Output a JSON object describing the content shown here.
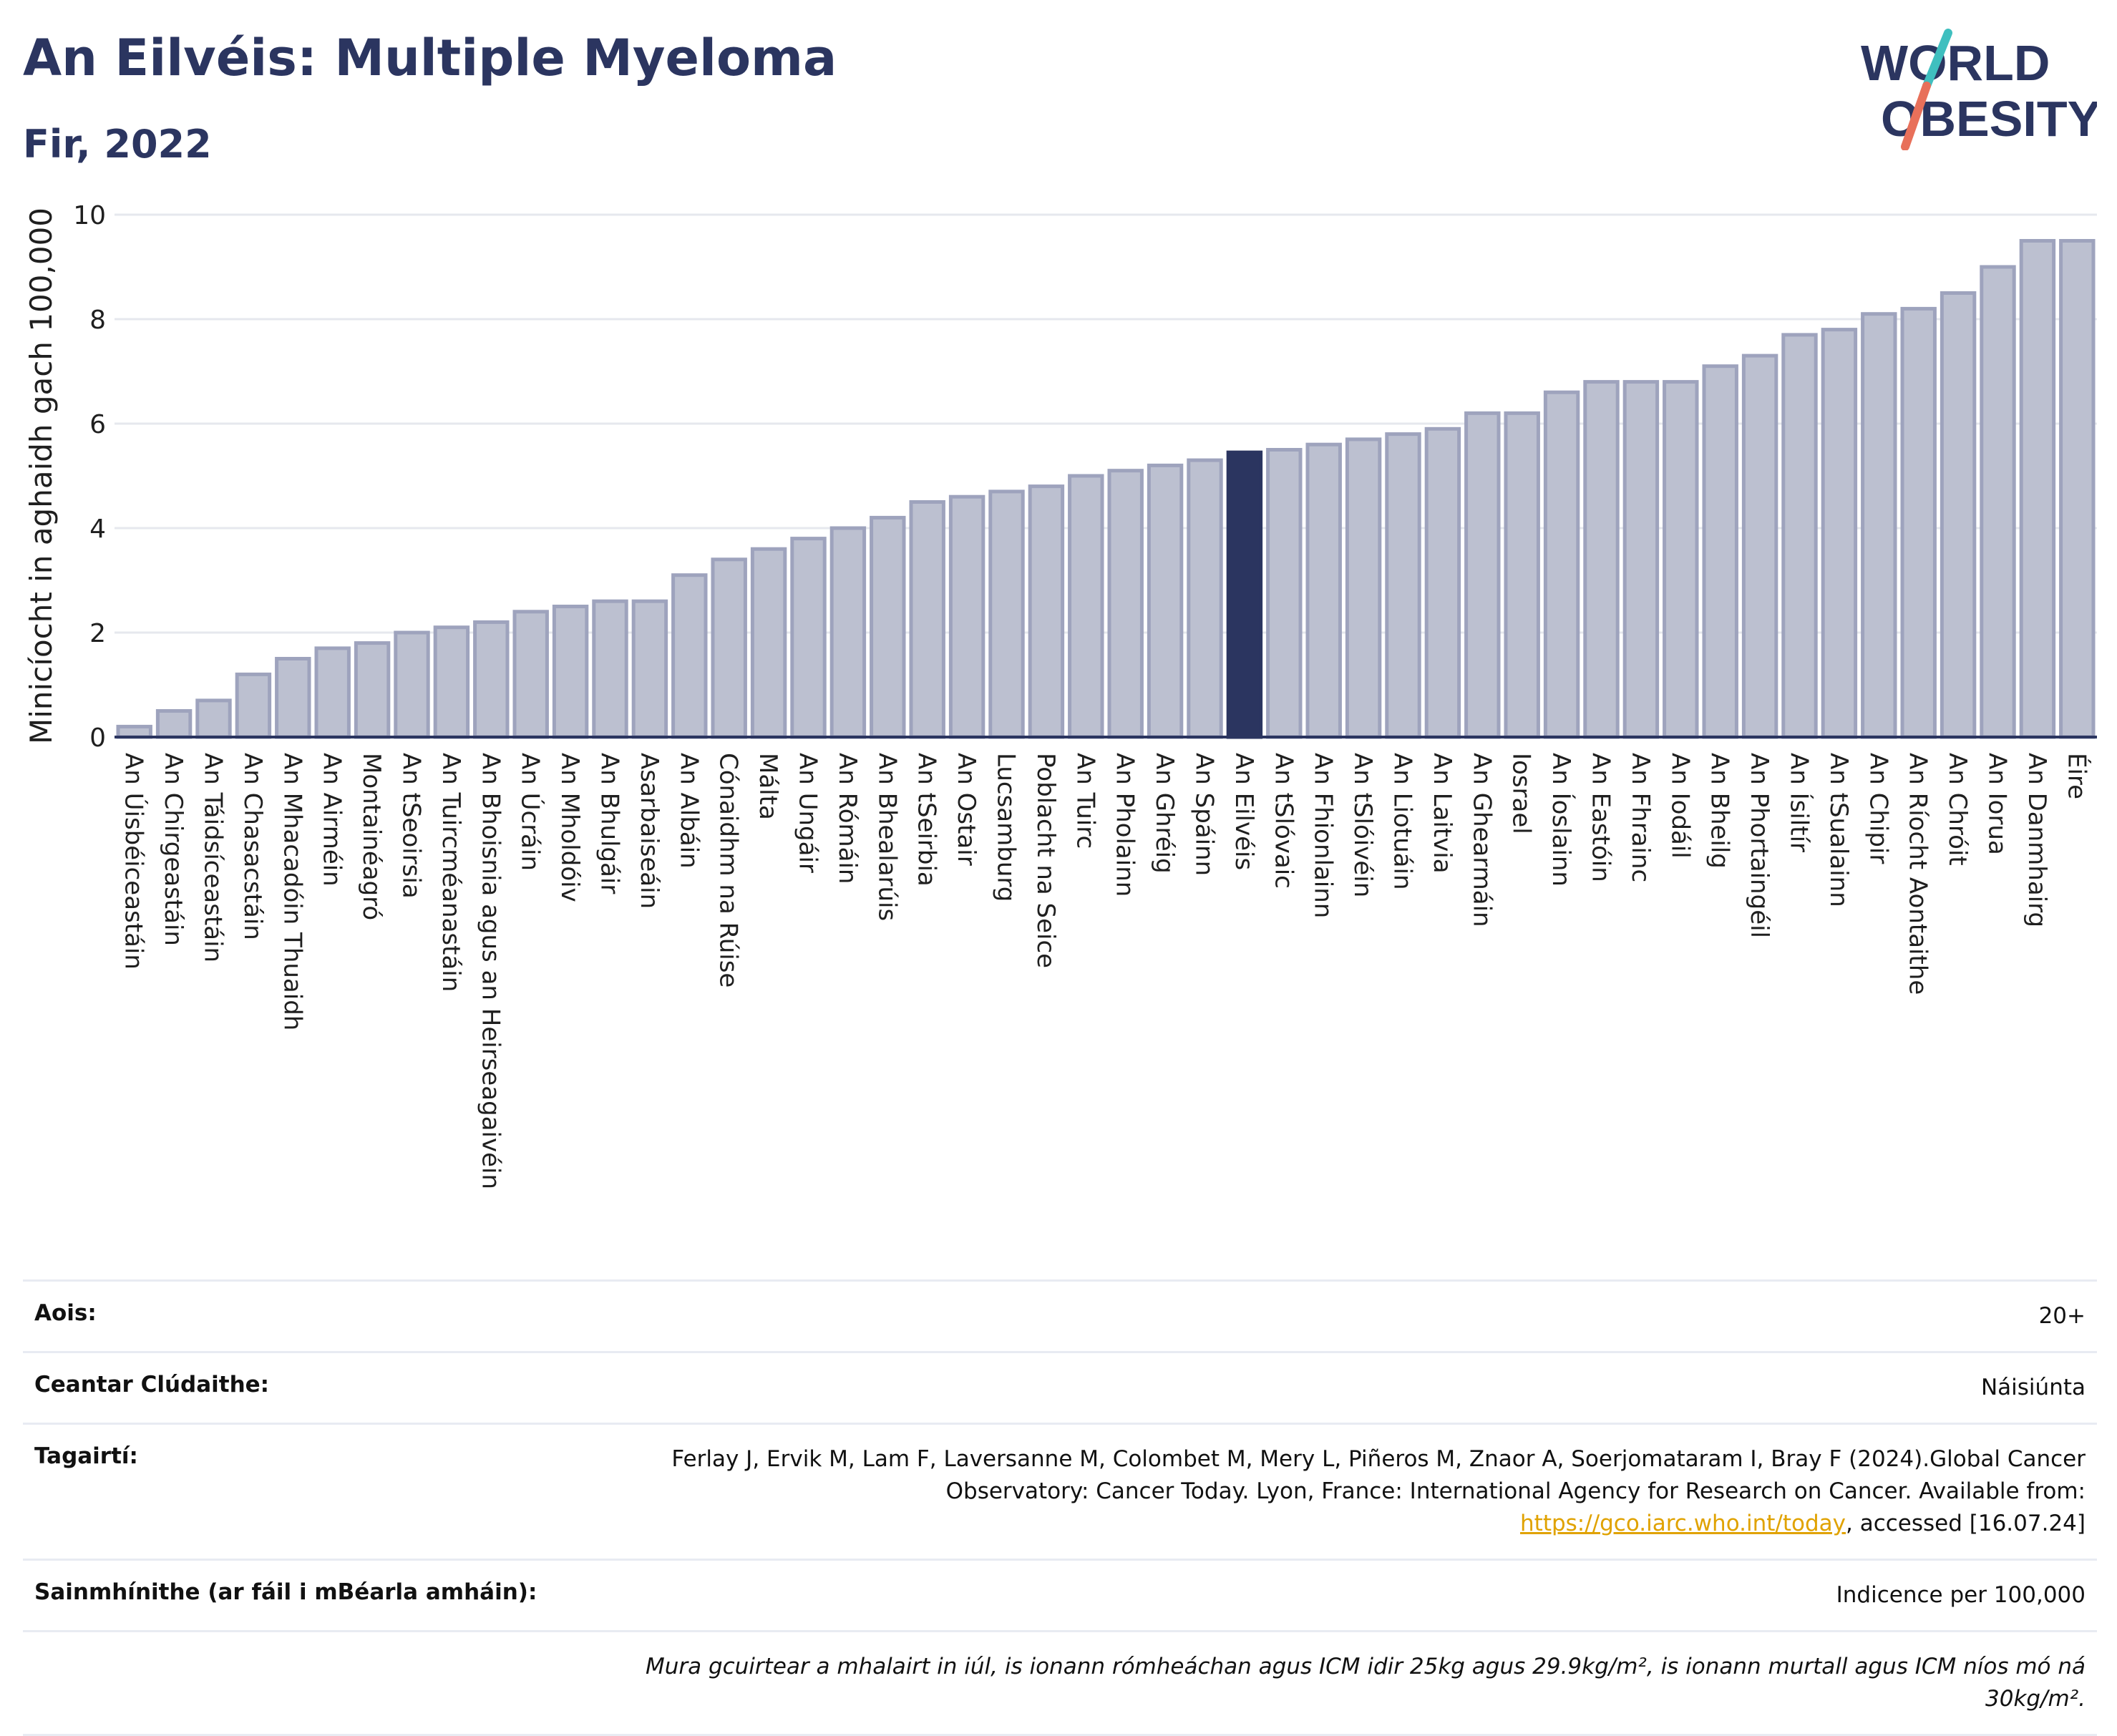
{
  "header": {
    "title": "An Eilvéis: Multiple Myeloma",
    "subtitle": "Fir, 2022"
  },
  "logo": {
    "line1": "WORLD",
    "line2": "OBESITY",
    "colors": {
      "text": "#2b3560",
      "slash_top": "#3fbfbf",
      "slash_bottom": "#e8705a"
    }
  },
  "colors": {
    "bar": "#bcc0d0",
    "bar_stroke": "#9ea3bd",
    "highlight": "#2b3560",
    "grid": "#e6e8ee",
    "axis": "#2b3560"
  },
  "chart_data": {
    "type": "bar",
    "ylabel": "Minicíocht in aghaidh gach 100,000",
    "ylim": [
      0,
      10
    ],
    "yticks": [
      0,
      2,
      4,
      6,
      8,
      10
    ],
    "highlight": "An Eilvéis",
    "grid": true,
    "categories": [
      "An Úisbéiceastáin",
      "An Chirgeastáin",
      "An Táidsíceastáin",
      "An Chasacstáin",
      "An Mhacadóin Thuaidh",
      "An Airméin",
      "Montainéagró",
      "An tSeoirsia",
      "An Tuircméanastáin",
      "An Bhoisnia agus an Heirseagaivéin",
      "An Úcráin",
      "An Mholdóiv",
      "An Bhulgáir",
      "Asarbaiseáin",
      "An Albáin",
      "Cónaidhm na Rúise",
      "Málta",
      "An Ungáir",
      "An Rómáin",
      "An Bhealarúis",
      "An tSeirbia",
      "An Ostair",
      "Lucsamburg",
      "Poblacht na Seice",
      "An Tuirc",
      "An Pholainn",
      "An Ghréig",
      "An Spáinn",
      "An Eilvéis",
      "An tSlóvaic",
      "An Fhionlainn",
      "An tSlóivéin",
      "An Liotuáin",
      "An Laitvia",
      "An Ghearmáin",
      "Iosrael",
      "An Íoslainn",
      "An Eastóin",
      "An Fhrainc",
      "An Iodáil",
      "An Bheilg",
      "An Phortaingéil",
      "An Ísiltír",
      "An tSualainn",
      "An Chipir",
      "An Ríocht Aontaithe",
      "An Chróit",
      "An Iorua",
      "An Danmhairg",
      "Éire"
    ],
    "values": [
      0.2,
      0.5,
      0.7,
      1.2,
      1.5,
      1.7,
      1.8,
      2.0,
      2.1,
      2.2,
      2.4,
      2.5,
      2.6,
      2.6,
      3.1,
      3.4,
      3.6,
      3.8,
      4.0,
      4.2,
      4.5,
      4.6,
      4.7,
      4.8,
      5.0,
      5.1,
      5.2,
      5.3,
      5.45,
      5.5,
      5.6,
      5.7,
      5.8,
      5.9,
      6.2,
      6.2,
      6.6,
      6.8,
      6.8,
      6.8,
      7.1,
      7.3,
      7.7,
      7.8,
      8.1,
      8.2,
      8.5,
      9.0,
      9.5,
      9.5
    ]
  },
  "info": {
    "age_label": "Aois:",
    "age_value": "20+",
    "coverage_label": "Ceantar Clúdaithe:",
    "coverage_value": "Náisiúnta",
    "refs_label": "Tagairtí:",
    "refs_value_1": "Ferlay J, Ervik M, Lam F, Laversanne M, Colombet M, Mery L, Piñeros M, Znaor A, Soerjomataram I, Bray F (2024).Global Cancer Observatory: Cancer Today. Lyon, France: International Agency for Research on Cancer. Available from: ",
    "refs_link": "https://gco.iarc.who.int/today",
    "refs_value_2": ", accessed [16.07.24]",
    "definitions_label": "Sainmhínithe (ar fáil i mBéarla amháin):",
    "definitions_value": "Indicence per 100,000",
    "note": "Mura gcuirtear a mhalairt in iúl, is ionann rómheáchan agus ICM idir 25kg agus 29.9kg/m², is ionann murtall agus ICM níos mó ná 30kg/m²."
  }
}
